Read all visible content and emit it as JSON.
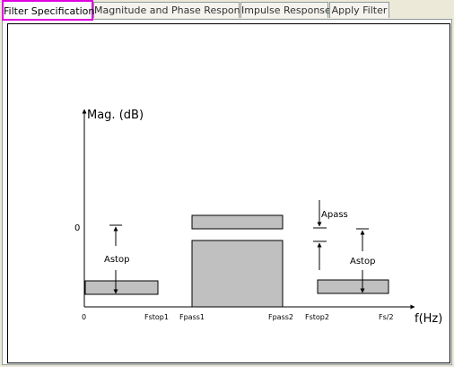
{
  "tabs": [
    {
      "label": "Filter Specification"
    },
    {
      "label": "Magnitude and Phase Response"
    },
    {
      "label": "Impulse Response"
    },
    {
      "label": "Apply Filter"
    }
  ],
  "diagram": {
    "y_axis_label": "Mag. (dB)",
    "x_axis_label": "f(Hz)",
    "zero_label": "0",
    "x_ticks": [
      "0",
      "Fstop1",
      "Fpass1",
      "Fpass2",
      "Fstop2",
      "Fs/2"
    ],
    "astop_left": "Astop",
    "astop_right": "Astop",
    "apass": "Apass"
  },
  "colors": {
    "band_fill": "#c0c0c0",
    "active_tab_border": "#e000e0"
  }
}
